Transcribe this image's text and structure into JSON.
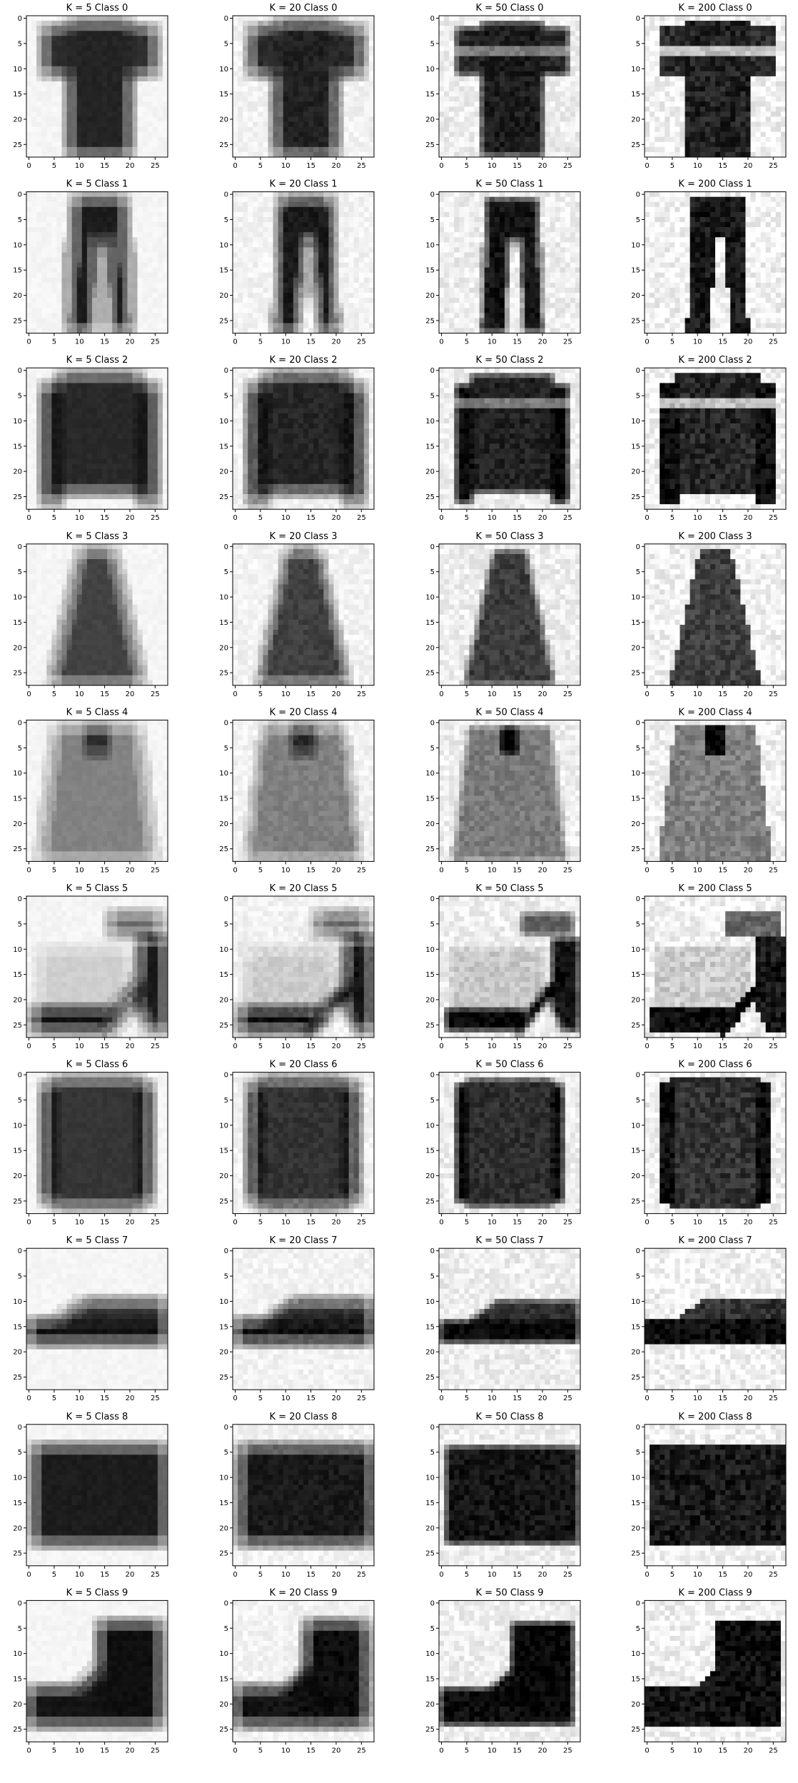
{
  "figure": {
    "columns": [
      "K = 5",
      "K = 20",
      "K = 50",
      "K = 200"
    ],
    "row_prefix": "Class"
  },
  "chart_data": {
    "type": "heatmap",
    "colormap": "gray_r",
    "grid": false,
    "image_size": [
      28,
      28
    ],
    "xlim": [
      -0.5,
      27.5
    ],
    "ylim": [
      27.5,
      -0.5
    ],
    "x_ticks": [
      0,
      5,
      10,
      15,
      20,
      25
    ],
    "y_ticks": [
      0,
      5,
      10,
      15,
      20,
      25
    ],
    "k_values": [
      5,
      20,
      50,
      200
    ],
    "classes": [
      0,
      1,
      2,
      3,
      4,
      5,
      6,
      7,
      8,
      9
    ],
    "panels": [
      {
        "title": "K = 5 Class 0"
      },
      {
        "title": "K = 20 Class 0"
      },
      {
        "title": "K = 50 Class 0"
      },
      {
        "title": "K = 200 Class 0"
      },
      {
        "title": "K = 5 Class 1"
      },
      {
        "title": "K = 20 Class 1"
      },
      {
        "title": "K = 50 Class 1"
      },
      {
        "title": "K = 200 Class 1"
      },
      {
        "title": "K = 5 Class 2"
      },
      {
        "title": "K = 20 Class 2"
      },
      {
        "title": "K = 50 Class 2"
      },
      {
        "title": "K = 200 Class 2"
      },
      {
        "title": "K = 5 Class 3"
      },
      {
        "title": "K = 20 Class 3"
      },
      {
        "title": "K = 50 Class 3"
      },
      {
        "title": "K = 200 Class 3"
      },
      {
        "title": "K = 5 Class 4"
      },
      {
        "title": "K = 20 Class 4"
      },
      {
        "title": "K = 50 Class 4"
      },
      {
        "title": "K = 200 Class 4"
      },
      {
        "title": "K = 5 Class 5"
      },
      {
        "title": "K = 20 Class 5"
      },
      {
        "title": "K = 50 Class 5"
      },
      {
        "title": "K = 200 Class 5"
      },
      {
        "title": "K = 5 Class 6"
      },
      {
        "title": "K = 20 Class 6"
      },
      {
        "title": "K = 50 Class 6"
      },
      {
        "title": "K = 200 Class 6"
      },
      {
        "title": "K = 5 Class 7"
      },
      {
        "title": "K = 20 Class 7"
      },
      {
        "title": "K = 50 Class 7"
      },
      {
        "title": "K = 200 Class 7"
      },
      {
        "title": "K = 5 Class 8"
      },
      {
        "title": "K = 20 Class 8"
      },
      {
        "title": "K = 50 Class 8"
      },
      {
        "title": "K = 200 Class 8"
      },
      {
        "title": "K = 5 Class 9"
      },
      {
        "title": "K = 20 Class 9"
      },
      {
        "title": "K = 50 Class 9"
      },
      {
        "title": "K = 200 Class 9"
      }
    ]
  }
}
